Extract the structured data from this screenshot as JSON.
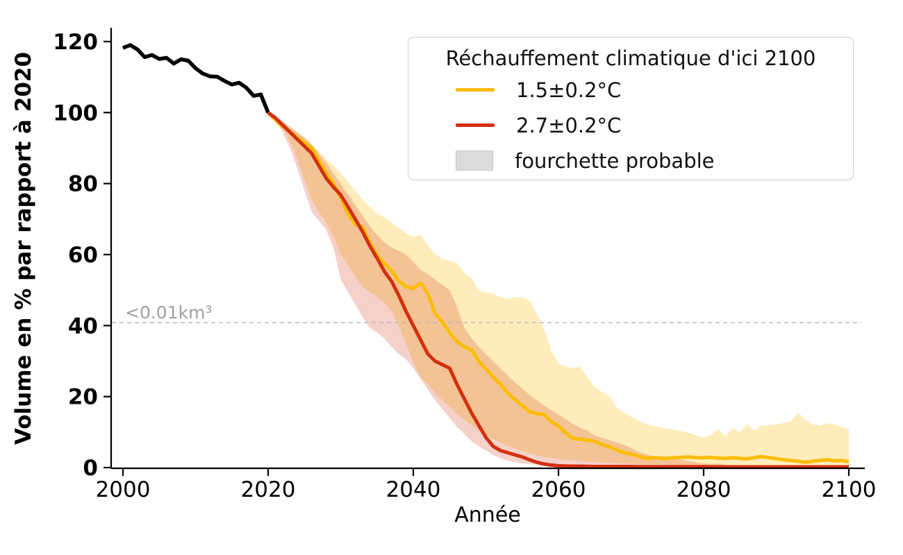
{
  "chart_data": {
    "type": "line",
    "title": "",
    "xlabel": "Année",
    "ylabel": "Volume en % par rapport à 2020",
    "xlim": [
      1998.4,
      2102.3
    ],
    "ylim": [
      0,
      124
    ],
    "xticks": [
      2000,
      2020,
      2040,
      2060,
      2080,
      2100
    ],
    "yticks": [
      0,
      20,
      40,
      60,
      80,
      100,
      120
    ],
    "grid": false,
    "threshold": {
      "value": 40.85,
      "label": "<0.01km³",
      "line_color": "#b8b8b8",
      "label_color": "#a0a0a0"
    },
    "legend": {
      "title": "Réchauffement climatique d'ici 2100",
      "position": "upper right",
      "entries": [
        {
          "label": "1.5±0.2°C",
          "color": "#FABD03",
          "type": "line"
        },
        {
          "label": "2.7±0.2°C",
          "color": "#D32F0E",
          "type": "line"
        },
        {
          "label": "fourchette probable",
          "color": "#DCDCDC",
          "type": "patch"
        }
      ]
    },
    "series": [
      {
        "name": "historique",
        "type": "line",
        "color": "#000000",
        "width": 5.5,
        "x_start": 2000,
        "values": [
          118.2,
          119.0,
          117.8,
          115.6,
          116.2,
          115.1,
          115.4,
          113.8,
          115.0,
          114.6,
          112.5,
          111.0,
          110.2,
          110.1,
          108.9,
          107.9,
          108.4,
          107.0,
          104.7,
          105.1,
          100.0
        ]
      },
      {
        "name": "scenario-1.5C",
        "type": "line",
        "color": "#FABD03",
        "width": 5,
        "x_start": 2020,
        "values": [
          100,
          98,
          96,
          94.5,
          93,
          91.5,
          90,
          86.5,
          83,
          80,
          76,
          71.5,
          68.5,
          67.8,
          63.5,
          60,
          57.5,
          55.5,
          52.5,
          51,
          50.5,
          52,
          49,
          43.5,
          41,
          38,
          35.5,
          34,
          33.2,
          30,
          27.8,
          25.5,
          23.5,
          21,
          19.2,
          17.5,
          15.8,
          15.2,
          15,
          13,
          11.7,
          9.8,
          8.2,
          8,
          7.7,
          7.4,
          6.5,
          5.9,
          5,
          4.2,
          3.8,
          3.2,
          2.6,
          2.8,
          2.7,
          2.6,
          2.8,
          2.9,
          3,
          2.8,
          2.8,
          2.9,
          2.7,
          2.6,
          2.8,
          2.6,
          2.5,
          2.8,
          3.1,
          2.8,
          2.5,
          2.2,
          2,
          1.8,
          1.5,
          1.8,
          2,
          2.2,
          1.9,
          2,
          1.7
        ]
      },
      {
        "name": "scenario-2.7C",
        "type": "line",
        "color": "#D32F0E",
        "width": 5,
        "x_start": 2020,
        "values": [
          100,
          98.5,
          96.5,
          94.5,
          92.5,
          90.5,
          88.5,
          85,
          81.5,
          79,
          76.8,
          73.5,
          70,
          66.5,
          62.5,
          59,
          55.3,
          52.5,
          48.5,
          44,
          40,
          36,
          32,
          30,
          29,
          28,
          23.5,
          19.5,
          15.5,
          12,
          8.5,
          6,
          4.8,
          4.2,
          3.6,
          3,
          2.2,
          1.5,
          1,
          0.7,
          0.5,
          0.45,
          0.4,
          0.4,
          0.35,
          0.3,
          0.3,
          0.3,
          0.3,
          0.3,
          0.3,
          0.25,
          0.25,
          0.25,
          0.25,
          0.25,
          0.25,
          0.25,
          0.25,
          0.25,
          0.25,
          0.2,
          0.2,
          0.2,
          0.2,
          0.2,
          0.2,
          0.2,
          0.2,
          0.2,
          0.2,
          0.2,
          0.2,
          0.2,
          0.2,
          0.2,
          0.2,
          0.2,
          0.2,
          0.2,
          0.2
        ]
      },
      {
        "name": "fourchette-1.5C",
        "type": "band",
        "color": "rgba(250,189,3,0.27)",
        "x_start": 2020,
        "upper": [
          100,
          99,
          97.5,
          96,
          94.5,
          93,
          91,
          89,
          87,
          85,
          83,
          80.5,
          78,
          75.5,
          73.5,
          71.5,
          70.5,
          69,
          67.5,
          66,
          65,
          65.5,
          62.5,
          60.2,
          58.8,
          58.2,
          57.7,
          55,
          53.3,
          49.8,
          49.4,
          49,
          48,
          47.5,
          48,
          48,
          47,
          43.5,
          39,
          33,
          29.3,
          28.5,
          28,
          28.5,
          25.4,
          22.7,
          21.3,
          20.1,
          17,
          15.5,
          14.3,
          13.2,
          12.3,
          11.8,
          11.4,
          11,
          10.6,
          10.2,
          9.8,
          9,
          8.4,
          9.2,
          10.9,
          8.8,
          11.1,
          9.9,
          12.3,
          10.5,
          11.9,
          12,
          12.2,
          12.5,
          13,
          15.6,
          13.5,
          12.2,
          11.8,
          12.5,
          12.2,
          11.5,
          10.7
        ],
        "lower": [
          100,
          98.5,
          96,
          92,
          87,
          81,
          75.5,
          72,
          69,
          65,
          60,
          57,
          54,
          51,
          49.5,
          48,
          46.5,
          44,
          40,
          35,
          29.5,
          25.4,
          23.5,
          21,
          19,
          17,
          15,
          13.5,
          12,
          10.5,
          9,
          8,
          7,
          6,
          5.3,
          4.7,
          4,
          3.5,
          3,
          2.7,
          2.4,
          2.2,
          2,
          1.85,
          1.7,
          1.55,
          1.4,
          1.3,
          1.2,
          1.1,
          1,
          0.95,
          0.9,
          0.87,
          0.84,
          0.8,
          0.76,
          0.72,
          0.68,
          0.64,
          0.6,
          0.58,
          0.56,
          0.54,
          0.52,
          0.5,
          0.48,
          0.46,
          0.44,
          0.42,
          0.4,
          0.39,
          0.38,
          0.37,
          0.36,
          0.35,
          0.34,
          0.33,
          0.32,
          0.31,
          0.3
        ]
      },
      {
        "name": "fourchette-2.7C",
        "type": "band",
        "color": "rgba(211,47,14,0.22)",
        "x_start": 2020,
        "upper": [
          100,
          99,
          97.5,
          96,
          94.5,
          93,
          91,
          88.5,
          86,
          83,
          80,
          77,
          74,
          71,
          68,
          65.5,
          63.5,
          62,
          61,
          60,
          58,
          55.7,
          54.5,
          53,
          51.5,
          50,
          45.5,
          39.5,
          36.5,
          34,
          32,
          30,
          28,
          26,
          24,
          22.3,
          20.5,
          19,
          17.5,
          16.2,
          15,
          13.6,
          12.3,
          11.3,
          10.4,
          9,
          8.4,
          7.8,
          7.1,
          6.4,
          5.5,
          4.5,
          3.8,
          3.2,
          2.8,
          2.5,
          2.8,
          2.2,
          1.8,
          1.4,
          1.2,
          1,
          1.2,
          0.8,
          0.6,
          0.5,
          0.5,
          0.45,
          0.4,
          0.4,
          0.4,
          0.38,
          0.37,
          0.36,
          0.35,
          0.34,
          0.33,
          0.32,
          0.31,
          0.3,
          0.3
        ],
        "lower": [
          100,
          98,
          94.5,
          90,
          84.5,
          78,
          72,
          69.5,
          67,
          62,
          53,
          49.5,
          46,
          42.5,
          39.5,
          38,
          36.4,
          34,
          32,
          30.5,
          28,
          25,
          22,
          19,
          16.5,
          14,
          11.5,
          9.5,
          7.5,
          6,
          4.8,
          3.6,
          2.6,
          2,
          1.5,
          1.2,
          1,
          0.8,
          0.6,
          0.5,
          0.45,
          0.42,
          0.4,
          0.37,
          0.34,
          0.3,
          0.28,
          0.27,
          0.26,
          0.25,
          0.25,
          0.24,
          0.23,
          0.22,
          0.21,
          0.2,
          0.2,
          0.19,
          0.18,
          0.17,
          0.16,
          0.16,
          0.15,
          0.15,
          0.15,
          0.15,
          0.14,
          0.14,
          0.14,
          0.13,
          0.13,
          0.13,
          0.13,
          0.12,
          0.12,
          0.12,
          0.12,
          0.11,
          0.11,
          0.11,
          0.1
        ]
      }
    ]
  }
}
